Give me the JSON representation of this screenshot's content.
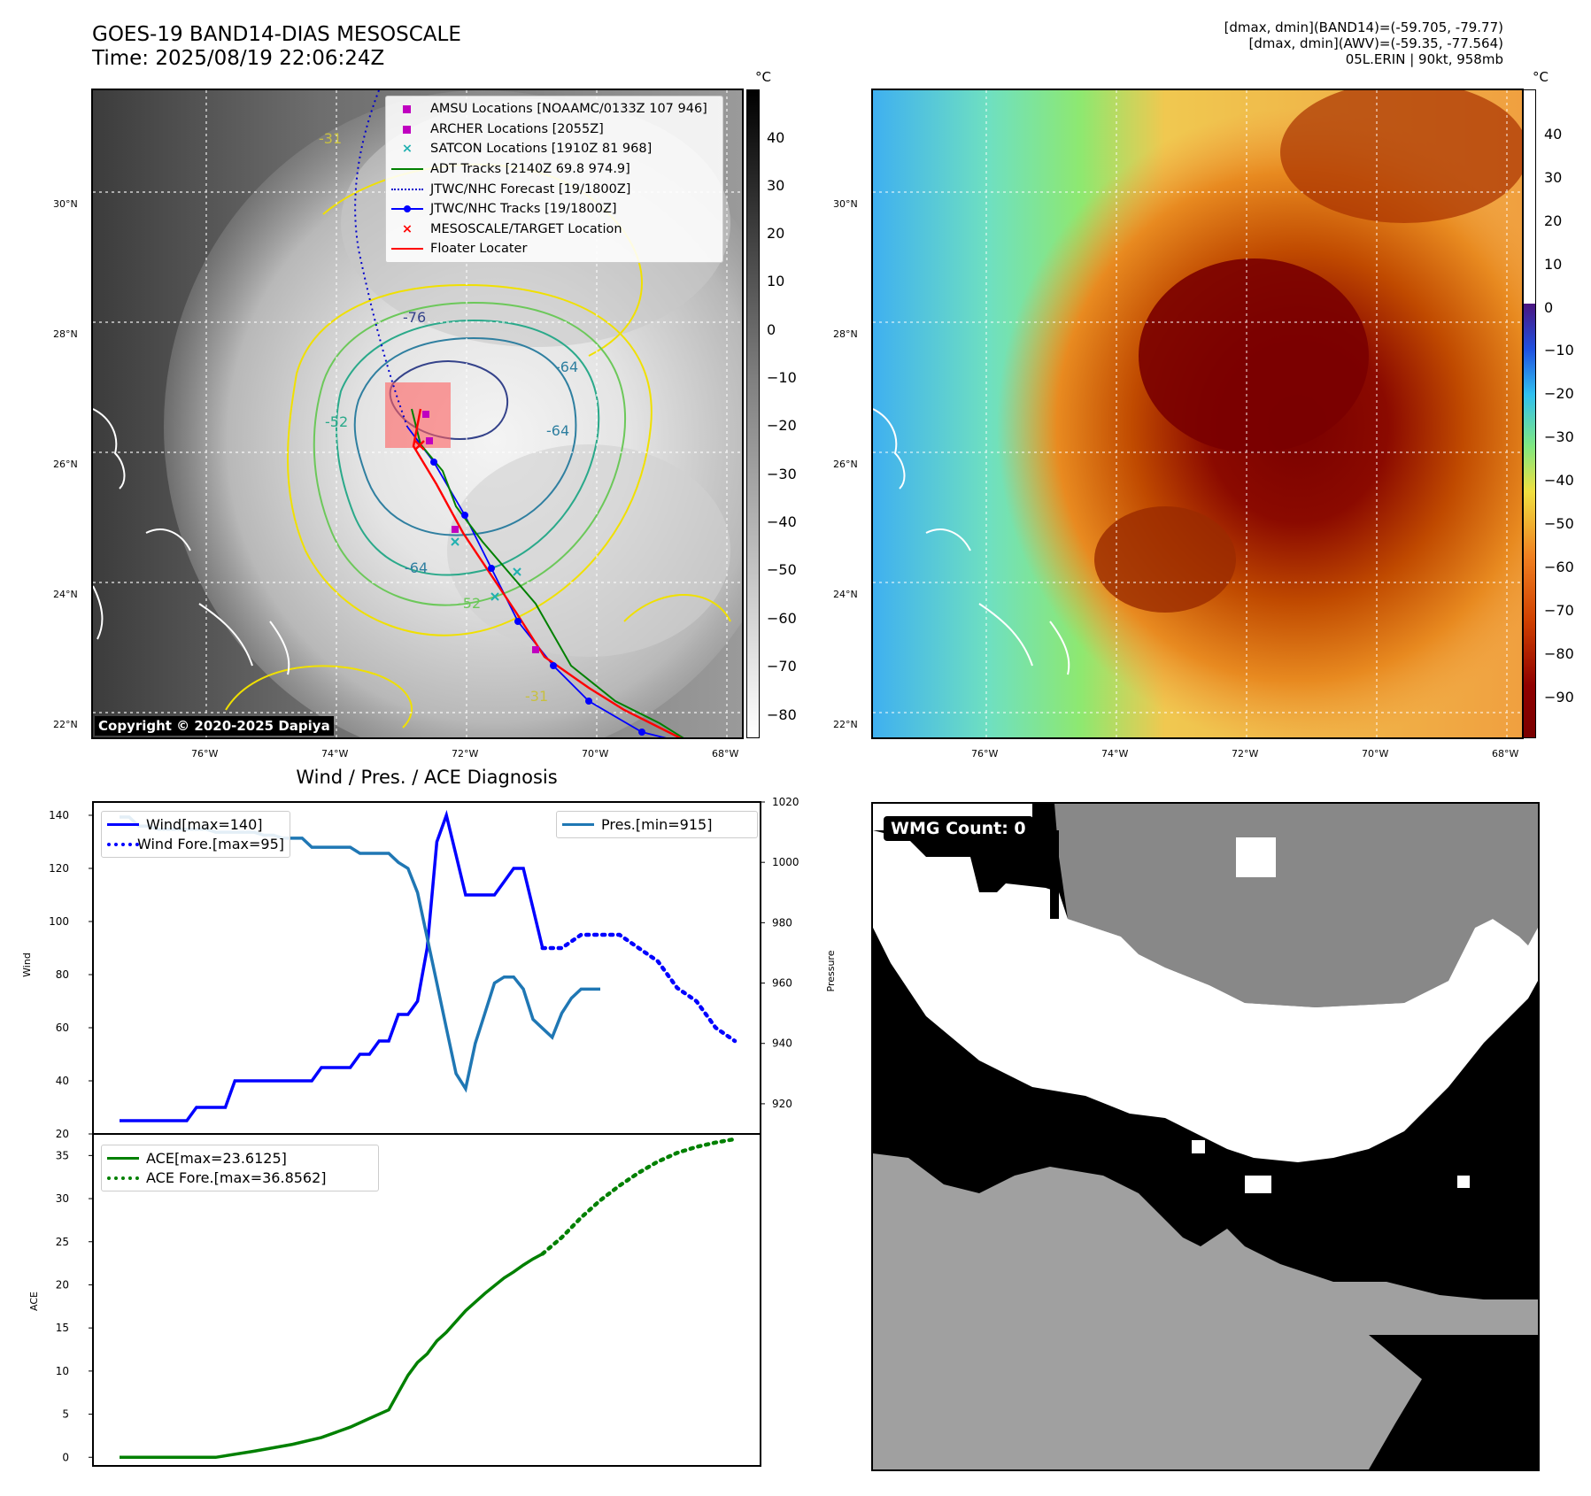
{
  "header": {
    "title_line1": "GOES-19 BAND14-DIAS MESOSCALE",
    "title_line2": "Time: 2025/08/19 22:06:24Z",
    "info_line1": "[dmax, dmin](BAND14)=(-59.705, -79.77)",
    "info_line2": "[dmax, dmin](AWV)=(-59.35, -77.564)",
    "info_line3": "05L.ERIN | 90kt, 958mb"
  },
  "map": {
    "lat_labels": [
      "30°N",
      "28°N",
      "26°N",
      "24°N",
      "22°N"
    ],
    "lon_labels": [
      "76°W",
      "74°W",
      "72°W",
      "70°W",
      "68°W"
    ],
    "contour_labels": [
      "-76",
      "-64",
      "-64",
      "-64",
      "-52",
      "-52",
      "-31",
      "-31"
    ],
    "copyright": "Copyright © 2020-2025 Dapiya"
  },
  "colorbar_left": {
    "unit": "°C",
    "ticks": [
      "40",
      "30",
      "20",
      "10",
      "0",
      "−10",
      "−20",
      "−30",
      "−40",
      "−50",
      "−60",
      "−70",
      "−80"
    ]
  },
  "colorbar_right": {
    "unit": "°C",
    "ticks": [
      "40",
      "30",
      "20",
      "10",
      "0",
      "−10",
      "−20",
      "−30",
      "−40",
      "−50",
      "−60",
      "−70",
      "−80",
      "−90"
    ]
  },
  "legend": {
    "items": [
      {
        "label": "AMSU Locations [NOAAMC/0133Z 107 946]",
        "marker": "square",
        "color": "#c000c0"
      },
      {
        "label": "ARCHER Locations [2055Z]",
        "marker": "square",
        "color": "#c000c0"
      },
      {
        "label": "SATCON Locations [1910Z 81 968]",
        "marker": "x",
        "color": "#20b0b0"
      },
      {
        "label": "ADT Tracks [2140Z 69.8 974.9]",
        "marker": "line",
        "color": "#008000"
      },
      {
        "label": "JTWC/NHC Forecast [19/1800Z]",
        "marker": "dotted",
        "color": "#0000cc"
      },
      {
        "label": "JTWC/NHC Tracks [19/1800Z]",
        "marker": "line-dot",
        "color": "#0000ff"
      },
      {
        "label": "MESOSCALE/TARGET Location",
        "marker": "x",
        "color": "#ff0000"
      },
      {
        "label": "Floater Locater",
        "marker": "line",
        "color": "#ff0000"
      }
    ]
  },
  "diagnosis": {
    "title": "Wind / Pres. / ACE Diagnosis",
    "wind_legend": [
      "Wind[max=140]",
      "Wind Fore.[max=95]"
    ],
    "pres_legend": "Pres.[min=915]",
    "ace_legend": [
      "ACE[max=23.6125]",
      "ACE Fore.[max=36.8562]"
    ],
    "ylabel_wind": "Wind",
    "ylabel_pres": "Pressure",
    "ylabel_ace": "ACE",
    "wind_ticks": [
      "140",
      "120",
      "100",
      "80",
      "60",
      "40",
      "20"
    ],
    "pres_ticks": [
      "1020",
      "1000",
      "980",
      "960",
      "940",
      "920"
    ],
    "ace_ticks": [
      "35",
      "30",
      "25",
      "20",
      "15",
      "10",
      "5",
      "0"
    ]
  },
  "wmg": {
    "label": "WMG Count: 0"
  },
  "chart_data": [
    {
      "type": "line",
      "panel": "wind",
      "ylim": [
        20,
        145
      ],
      "xlim": [
        0,
        64
      ],
      "series": [
        {
          "name": "Wind[max=140]",
          "color": "#0000ff",
          "style": "solid",
          "x": [
            0,
            1,
            2,
            3,
            4,
            5,
            6,
            7,
            8,
            9,
            10,
            11,
            12,
            13,
            14,
            15,
            16,
            17,
            18,
            19,
            20,
            21,
            22,
            23,
            24,
            25,
            26,
            27,
            28,
            29,
            30,
            31,
            32,
            33,
            34,
            35,
            36,
            37,
            38,
            39,
            40,
            41,
            42,
            43,
            44
          ],
          "values": [
            25,
            25,
            25,
            25,
            25,
            25,
            25,
            25,
            30,
            30,
            30,
            30,
            40,
            40,
            40,
            40,
            40,
            40,
            40,
            40,
            40,
            45,
            45,
            45,
            45,
            50,
            50,
            55,
            55,
            65,
            65,
            70,
            90,
            130,
            140,
            125,
            110,
            110,
            110,
            110,
            115,
            120,
            120,
            105,
            90
          ]
        },
        {
          "name": "Wind Fore.[max=95]",
          "color": "#0000ff",
          "style": "dotted",
          "x": [
            44,
            46,
            48,
            50,
            52,
            54,
            56,
            58,
            60,
            62,
            64
          ],
          "values": [
            90,
            90,
            95,
            95,
            95,
            90,
            85,
            75,
            70,
            60,
            55
          ]
        }
      ]
    },
    {
      "type": "line",
      "panel": "pressure",
      "ylim": [
        910,
        1020
      ],
      "series": [
        {
          "name": "Pres.[min=915]",
          "color": "#1f77b4",
          "style": "solid",
          "x": [
            0,
            1,
            2,
            3,
            4,
            5,
            6,
            7,
            8,
            9,
            10,
            11,
            12,
            13,
            14,
            15,
            16,
            17,
            18,
            19,
            20,
            21,
            22,
            23,
            24,
            25,
            26,
            27,
            28,
            29,
            30,
            31,
            32,
            33,
            34,
            35,
            36,
            37,
            38,
            39,
            40,
            41,
            42,
            43,
            44,
            45,
            46,
            47,
            48,
            49,
            50
          ],
          "values": [
            1015,
            1015,
            1012,
            1012,
            1011,
            1011,
            1011,
            1011,
            1011,
            1011,
            1010,
            1010,
            1010,
            1010,
            1010,
            1009,
            1009,
            1008,
            1008,
            1008,
            1005,
            1005,
            1005,
            1005,
            1005,
            1003,
            1003,
            1003,
            1003,
            1000,
            998,
            990,
            975,
            960,
            945,
            930,
            925,
            940,
            950,
            960,
            962,
            962,
            958,
            948,
            945,
            942,
            950,
            955,
            958,
            958,
            958
          ]
        }
      ]
    },
    {
      "type": "line",
      "panel": "ace",
      "ylim": [
        -1,
        37.5
      ],
      "series": [
        {
          "name": "ACE[max=23.6125]",
          "color": "#008000",
          "style": "solid",
          "x": [
            0,
            5,
            9,
            10,
            14,
            18,
            21,
            24,
            26,
            28,
            29,
            30,
            31,
            32,
            33,
            34,
            36,
            38,
            40,
            41,
            42,
            43,
            44
          ],
          "values": [
            0,
            0,
            0,
            0,
            0.7,
            1.5,
            2.3,
            3.5,
            4.5,
            5.5,
            7.5,
            9.5,
            11,
            12,
            13.5,
            14.5,
            17,
            19,
            20.8,
            21.5,
            22.3,
            23,
            23.6
          ]
        },
        {
          "name": "ACE Fore.[max=36.8562]",
          "color": "#008000",
          "style": "dotted",
          "x": [
            44,
            46,
            48,
            50,
            52,
            54,
            56,
            58,
            60,
            62,
            64
          ],
          "values": [
            23.6,
            25.5,
            27.8,
            29.8,
            31.5,
            33,
            34.3,
            35.3,
            36,
            36.5,
            36.9
          ]
        }
      ]
    }
  ]
}
